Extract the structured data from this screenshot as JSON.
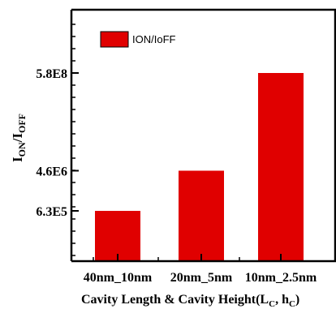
{
  "chart_data": {
    "type": "bar",
    "categories": [
      "40nm_10nm",
      "20nm_5nm",
      "10nm_2.5nm"
    ],
    "series": [
      {
        "name": "ION/IoFF",
        "values": [
          630000,
          4600000,
          580000000
        ],
        "color": "#e00000"
      }
    ],
    "y_ticks": [
      {
        "label": "6.3E5",
        "value": 630000
      },
      {
        "label": "4.6E6",
        "value": 4600000
      },
      {
        "label": "5.8E8",
        "value": 580000000
      }
    ],
    "ylabel": {
      "base1": "I",
      "sub1": "ON",
      "sep": "/",
      "base2": "I",
      "sub2": "OFF"
    },
    "xlabel": {
      "text": "Cavity Length & Cavity Height(L",
      "sub1": "C",
      "mid": ", h",
      "sub2": "C",
      "end": ")"
    },
    "yscale": "log",
    "legend_position": "top-left",
    "grid": false
  }
}
